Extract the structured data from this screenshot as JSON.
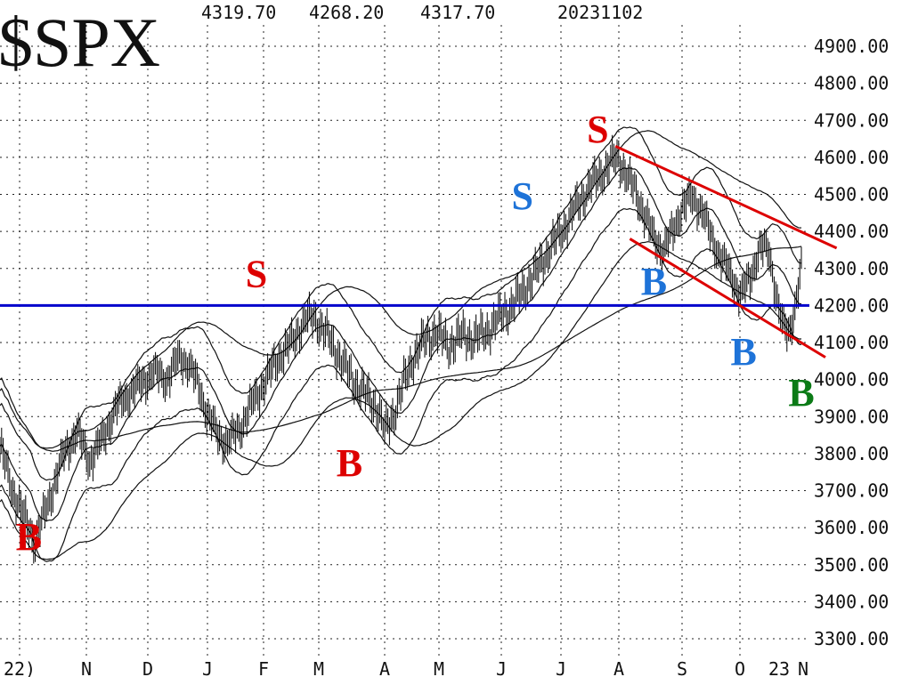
{
  "header": {
    "symbol": "$SPX",
    "high": "4319.70",
    "low": "4268.20",
    "close": "4317.70",
    "date": "20231102"
  },
  "chart_data": {
    "type": "line",
    "series_style": "daily-bars-with-moving-averages-and-bands",
    "x_ticks": [
      "22)",
      "N",
      "D",
      "J",
      "F",
      "M",
      "A",
      "M",
      "J",
      "J",
      "A",
      "S",
      "O",
      "23",
      "N"
    ],
    "y_ticks": [
      "4900.00",
      "4800.00",
      "4700.00",
      "4600.00",
      "4500.00",
      "4400.00",
      "4300.00",
      "4200.00",
      "4100.00",
      "4000.00",
      "3900.00",
      "3800.00",
      "3700.00",
      "3600.00",
      "3500.00",
      "3400.00",
      "3300.00"
    ],
    "ylim": [
      3250,
      4930
    ],
    "grid": true,
    "price_path": [
      [
        0,
        3820
      ],
      [
        8,
        3700
      ],
      [
        16,
        3620
      ],
      [
        22,
        3560
      ],
      [
        28,
        3640
      ],
      [
        34,
        3720
      ],
      [
        40,
        3800
      ],
      [
        48,
        3860
      ],
      [
        56,
        3780
      ],
      [
        64,
        3840
      ],
      [
        72,
        3920
      ],
      [
        80,
        3960
      ],
      [
        88,
        3990
      ],
      [
        96,
        4020
      ],
      [
        104,
        4000
      ],
      [
        112,
        4060
      ],
      [
        118,
        4040
      ],
      [
        124,
        3980
      ],
      [
        130,
        3900
      ],
      [
        136,
        3850
      ],
      [
        142,
        3830
      ],
      [
        150,
        3870
      ],
      [
        158,
        3940
      ],
      [
        166,
        4000
      ],
      [
        174,
        4060
      ],
      [
        182,
        4100
      ],
      [
        190,
        4160
      ],
      [
        196,
        4170
      ],
      [
        204,
        4120
      ],
      [
        212,
        4060
      ],
      [
        220,
        4000
      ],
      [
        228,
        3960
      ],
      [
        236,
        3920
      ],
      [
        240,
        3860
      ],
      [
        246,
        3910
      ],
      [
        252,
        3990
      ],
      [
        258,
        4060
      ],
      [
        264,
        4100
      ],
      [
        272,
        4130
      ],
      [
        280,
        4090
      ],
      [
        288,
        4120
      ],
      [
        296,
        4110
      ],
      [
        304,
        4130
      ],
      [
        312,
        4170
      ],
      [
        320,
        4200
      ],
      [
        328,
        4250
      ],
      [
        336,
        4300
      ],
      [
        344,
        4360
      ],
      [
        352,
        4410
      ],
      [
        360,
        4470
      ],
      [
        368,
        4520
      ],
      [
        376,
        4560
      ],
      [
        382,
        4590
      ],
      [
        386,
        4600
      ],
      [
        390,
        4560
      ],
      [
        396,
        4510
      ],
      [
        402,
        4450
      ],
      [
        408,
        4380
      ],
      [
        414,
        4350
      ],
      [
        420,
        4400
      ],
      [
        426,
        4470
      ],
      [
        432,
        4490
      ],
      [
        438,
        4460
      ],
      [
        444,
        4380
      ],
      [
        450,
        4330
      ],
      [
        456,
        4280
      ],
      [
        462,
        4230
      ],
      [
        468,
        4270
      ],
      [
        474,
        4360
      ],
      [
        480,
        4340
      ],
      [
        484,
        4240
      ],
      [
        488,
        4150
      ],
      [
        492,
        4120
      ],
      [
        496,
        4200
      ],
      [
        500,
        4300
      ]
    ],
    "horizontal_lines": [
      {
        "y": 4200,
        "x_start": 0,
        "x_end": 505,
        "color": "#0000cc"
      }
    ],
    "trendlines": [
      {
        "from": [
          384,
          4630
        ],
        "to": [
          522,
          4355
        ],
        "color": "#dd0000"
      },
      {
        "from": [
          393,
          4380
        ],
        "to": [
          515,
          4060
        ],
        "color": "#dd0000"
      }
    ],
    "annotations": [
      {
        "label": "B",
        "x": 18,
        "y": 3540,
        "color": "#dd0000"
      },
      {
        "label": "S",
        "x": 160,
        "y": 4250,
        "color": "#dd0000"
      },
      {
        "label": "B",
        "x": 218,
        "y": 3740,
        "color": "#dd0000"
      },
      {
        "label": "S",
        "x": 326,
        "y": 4460,
        "color": "#1e73d8"
      },
      {
        "label": "S",
        "x": 373,
        "y": 4640,
        "color": "#dd0000"
      },
      {
        "label": "B",
        "x": 408,
        "y": 4230,
        "color": "#1e73d8"
      },
      {
        "label": "B",
        "x": 464,
        "y": 4040,
        "color": "#1e73d8"
      },
      {
        "label": "B",
        "x": 500,
        "y": 3930,
        "color": "#0b7a16"
      }
    ]
  }
}
